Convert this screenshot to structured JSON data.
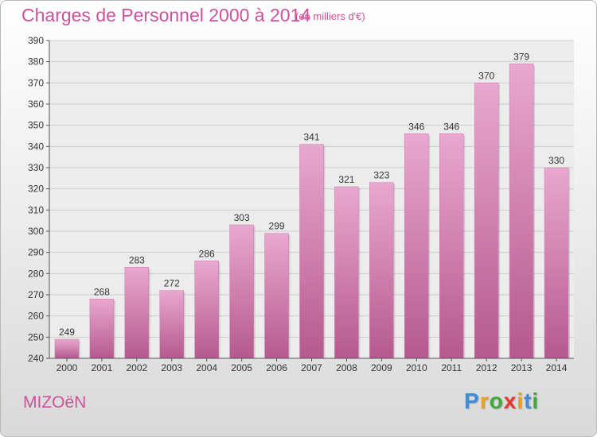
{
  "title": "Charges de Personnel 2000 à 2014",
  "subtitle": "(en milliers d'€)",
  "commune": "MIZOëN",
  "logo": {
    "letters": [
      "P",
      "r",
      "o",
      "x",
      "i",
      "t",
      "i"
    ],
    "colors": [
      "#3f8fd8",
      "#f0a020",
      "#43a83c",
      "#e8352e",
      "#f0a020",
      "#3f8fd8",
      "#43a83c"
    ]
  },
  "colors": {
    "bar_top": "#e8a8cf",
    "bar_bottom": "#b5598f",
    "title": "#d0509b",
    "grid": "#cccccc"
  },
  "chart_data": {
    "type": "bar",
    "title": "Charges de Personnel 2000 à 2014",
    "subtitle": "(en milliers d'€)",
    "categories": [
      "2000",
      "2001",
      "2002",
      "2003",
      "2004",
      "2005",
      "2006",
      "2007",
      "2008",
      "2009",
      "2010",
      "2011",
      "2012",
      "2013",
      "2014"
    ],
    "values": [
      249,
      268,
      283,
      272,
      286,
      303,
      299,
      341,
      321,
      323,
      346,
      346,
      370,
      379,
      330
    ],
    "ylim": [
      240,
      390
    ],
    "yticks": [
      240,
      250,
      260,
      270,
      280,
      290,
      300,
      310,
      320,
      330,
      340,
      350,
      360,
      370,
      380,
      390
    ],
    "grid": true,
    "legend": "none"
  }
}
